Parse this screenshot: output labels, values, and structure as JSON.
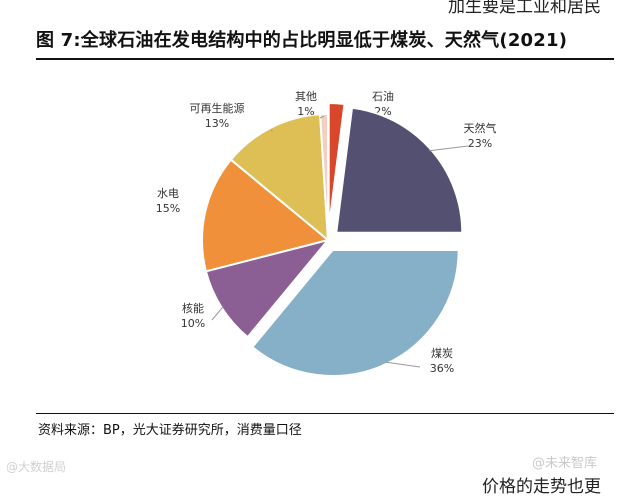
{
  "page": {
    "top_fragment": "加生要是工业和居民",
    "title": "图 7:全球石油在发电结构中的占比明显低于煤炭、天然气(2021)",
    "source": "资料来源：BP，光大证券研究所，消费量口径",
    "watermark_left": "@大数据局",
    "watermark_right": "@未来智库",
    "bottom_fragment": "价格的走势也更"
  },
  "chart_data": {
    "type": "pie",
    "title": "图 7:全球石油在发电结构中的占比明显低于煤炭、天然气(2021)",
    "slices": [
      {
        "label": "石油",
        "value": 2,
        "value_label": "2%",
        "color": "#D9472B",
        "exploded": true
      },
      {
        "label": "天然气",
        "value": 23,
        "value_label": "23%",
        "color": "#535072",
        "exploded": true
      },
      {
        "label": "煤炭",
        "value": 36,
        "value_label": "36%",
        "color": "#86B0C7",
        "exploded": true
      },
      {
        "label": "核能",
        "value": 10,
        "value_label": "10%",
        "color": "#8B5F93",
        "exploded": false
      },
      {
        "label": "水电",
        "value": 15,
        "value_label": "15%",
        "color": "#F0903A",
        "exploded": false
      },
      {
        "label": "可再生能源",
        "value": 13,
        "value_label": "13%",
        "color": "#DDBF55",
        "exploded": false
      },
      {
        "label": "其他",
        "value": 1,
        "value_label": "1%",
        "color": "#F2CFC0",
        "exploded": false
      }
    ],
    "start_angle_deg": 0,
    "direction": "clockwise",
    "legend": "none"
  }
}
